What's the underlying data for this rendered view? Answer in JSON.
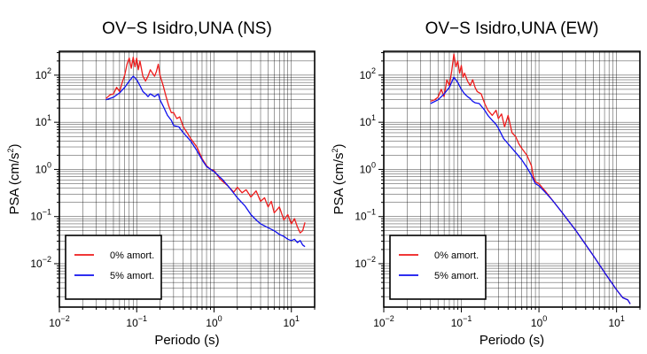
{
  "figure": {
    "background": "#ffffff",
    "grid_color": "#000000",
    "colors": {
      "red": "#ee1c1c",
      "blue": "#1010ee"
    }
  },
  "chart_data": [
    {
      "type": "line",
      "title": "OV−S Isidro,UNA (NS)",
      "xlabel": "Periodo (s)",
      "ylabel_main": "PSA (cm/s",
      "ylabel_sup": "2",
      "ylabel_close": ")",
      "xscale": "log",
      "yscale": "log",
      "xlim": [
        0.01,
        20
      ],
      "ylim": [
        0.0012,
        320
      ],
      "grid": true,
      "x_ticks": [
        {
          "value": 0.01,
          "base": "10",
          "exp": "−2"
        },
        {
          "value": 0.1,
          "base": "10",
          "exp": "−1"
        },
        {
          "value": 1,
          "base": "10",
          "exp": "0"
        },
        {
          "value": 10,
          "base": "10",
          "exp": "1"
        }
      ],
      "y_ticks": [
        {
          "value": 0.01,
          "base": "10",
          "exp": "−2"
        },
        {
          "value": 0.1,
          "base": "10",
          "exp": "−1"
        },
        {
          "value": 1,
          "base": "10",
          "exp": "0"
        },
        {
          "value": 10,
          "base": "10",
          "exp": "1"
        },
        {
          "value": 100,
          "base": "10",
          "exp": "2"
        }
      ],
      "legend_position": "bottom-left",
      "series": [
        {
          "name": "0% amort.",
          "color": "#ee1c1c",
          "x": [
            0.04,
            0.045,
            0.05,
            0.055,
            0.06,
            0.065,
            0.07,
            0.075,
            0.08,
            0.085,
            0.09,
            0.095,
            0.1,
            0.105,
            0.11,
            0.12,
            0.13,
            0.14,
            0.15,
            0.16,
            0.17,
            0.18,
            0.19,
            0.2,
            0.22,
            0.24,
            0.26,
            0.28,
            0.3,
            0.33,
            0.36,
            0.4,
            0.45,
            0.5,
            0.6,
            0.7,
            0.8,
            0.9,
            1.0,
            1.2,
            1.5,
            1.8,
            2.0,
            2.3,
            2.6,
            3.0,
            3.5,
            4.0,
            4.5,
            5.0,
            5.5,
            6.0,
            7.0,
            8.0,
            9.0,
            10.0,
            11.0,
            12.0,
            13.0,
            14.0,
            15.0
          ],
          "y": [
            32,
            38,
            40,
            55,
            45,
            70,
            100,
            170,
            230,
            140,
            240,
            150,
            230,
            130,
            200,
            95,
            75,
            95,
            130,
            110,
            95,
            120,
            170,
            100,
            60,
            35,
            22,
            16,
            16,
            12,
            13,
            8,
            6,
            4.5,
            3.0,
            1.7,
            1.2,
            1.0,
            0.95,
            0.62,
            0.45,
            0.33,
            0.42,
            0.32,
            0.37,
            0.26,
            0.35,
            0.21,
            0.25,
            0.16,
            0.21,
            0.12,
            0.16,
            0.085,
            0.11,
            0.07,
            0.09,
            0.06,
            0.045,
            0.05,
            0.075
          ]
        },
        {
          "name": "5% amort.",
          "color": "#1010ee",
          "x": [
            0.04,
            0.05,
            0.06,
            0.07,
            0.08,
            0.09,
            0.1,
            0.11,
            0.12,
            0.13,
            0.14,
            0.15,
            0.17,
            0.19,
            0.2,
            0.22,
            0.25,
            0.28,
            0.3,
            0.35,
            0.4,
            0.5,
            0.6,
            0.7,
            0.8,
            1.0,
            1.3,
            1.6,
            2.0,
            2.5,
            3.0,
            3.5,
            4.0,
            5.0,
            6.0,
            7.0,
            8.0,
            9.0,
            10.0,
            11.0,
            12.0,
            13.0,
            14.0,
            15.0
          ],
          "y": [
            30,
            34,
            42,
            55,
            75,
            95,
            80,
            60,
            45,
            40,
            35,
            40,
            35,
            40,
            30,
            22,
            14,
            11,
            8.5,
            8.0,
            6.0,
            4.0,
            2.5,
            1.6,
            1.15,
            0.9,
            0.6,
            0.4,
            0.25,
            0.17,
            0.11,
            0.085,
            0.07,
            0.058,
            0.05,
            0.042,
            0.038,
            0.033,
            0.031,
            0.033,
            0.028,
            0.031,
            0.025,
            0.023
          ]
        }
      ]
    },
    {
      "type": "line",
      "title": "OV−S Isidro,UNA (EW)",
      "xlabel": "Periodo (s)",
      "ylabel_main": "PSA (cm/s",
      "ylabel_sup": "2",
      "ylabel_close": ")",
      "xscale": "log",
      "yscale": "log",
      "xlim": [
        0.01,
        20
      ],
      "ylim": [
        0.0012,
        320
      ],
      "grid": true,
      "x_ticks": [
        {
          "value": 0.01,
          "base": "10",
          "exp": "−2"
        },
        {
          "value": 0.1,
          "base": "10",
          "exp": "−1"
        },
        {
          "value": 1,
          "base": "10",
          "exp": "0"
        },
        {
          "value": 10,
          "base": "10",
          "exp": "1"
        }
      ],
      "y_ticks": [
        {
          "value": 0.01,
          "base": "10",
          "exp": "−2"
        },
        {
          "value": 0.1,
          "base": "10",
          "exp": "−1"
        },
        {
          "value": 1,
          "base": "10",
          "exp": "0"
        },
        {
          "value": 10,
          "base": "10",
          "exp": "1"
        },
        {
          "value": 100,
          "base": "10",
          "exp": "2"
        }
      ],
      "legend_position": "bottom-left",
      "series": [
        {
          "name": "0% amort.",
          "color": "#ee1c1c",
          "x": [
            0.04,
            0.045,
            0.05,
            0.055,
            0.06,
            0.065,
            0.07,
            0.075,
            0.08,
            0.085,
            0.09,
            0.095,
            0.1,
            0.105,
            0.11,
            0.12,
            0.13,
            0.14,
            0.15,
            0.16,
            0.18,
            0.2,
            0.22,
            0.25,
            0.28,
            0.3,
            0.33,
            0.36,
            0.4,
            0.45,
            0.5,
            0.55,
            0.6,
            0.7,
            0.8,
            0.85,
            0.9,
            1.0,
            1.2,
            1.5,
            2.0,
            3.0,
            5.0,
            7.0,
            10.0,
            12.0,
            14.0,
            15.0
          ],
          "y": [
            28,
            30,
            34,
            50,
            35,
            80,
            60,
            120,
            280,
            150,
            200,
            110,
            160,
            90,
            110,
            75,
            60,
            80,
            55,
            45,
            40,
            25,
            18,
            14,
            18,
            12,
            15,
            8,
            14,
            6,
            5,
            3.5,
            2.8,
            2.0,
            1.2,
            0.7,
            0.55,
            0.5,
            0.35,
            0.22,
            0.12,
            0.05,
            0.015,
            0.0065,
            0.0028,
            0.0019,
            0.0017,
            0.0014
          ]
        },
        {
          "name": "5% amort.",
          "color": "#1010ee",
          "x": [
            0.04,
            0.05,
            0.06,
            0.07,
            0.08,
            0.09,
            0.1,
            0.11,
            0.12,
            0.13,
            0.14,
            0.15,
            0.17,
            0.2,
            0.22,
            0.25,
            0.28,
            0.3,
            0.35,
            0.4,
            0.5,
            0.6,
            0.7,
            0.8,
            0.85,
            0.9,
            1.0,
            1.2,
            1.5,
            2.0,
            3.0,
            5.0,
            7.0,
            10.0,
            12.0,
            14.0,
            15.0
          ],
          "y": [
            25,
            30,
            40,
            55,
            90,
            70,
            50,
            40,
            35,
            32,
            28,
            26,
            25,
            18,
            14,
            11,
            9,
            7.5,
            4.5,
            3.5,
            2.3,
            1.6,
            1.1,
            0.75,
            0.6,
            0.5,
            0.45,
            0.33,
            0.22,
            0.12,
            0.05,
            0.015,
            0.0065,
            0.0028,
            0.0019,
            0.0017,
            0.0014
          ]
        }
      ]
    }
  ]
}
